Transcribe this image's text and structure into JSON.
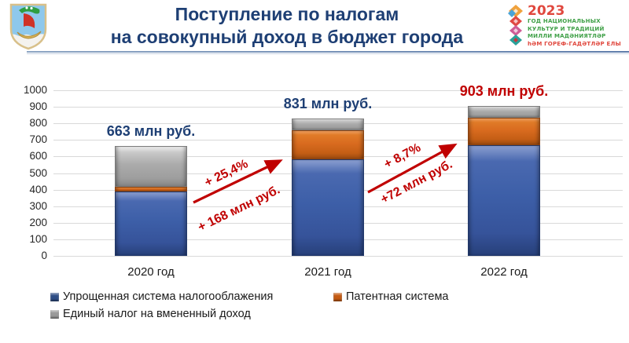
{
  "header": {
    "title_line1": "Поступление по налогам",
    "title_line2": "на совокупный доход в бюджет города",
    "year_logo": {
      "year": "2023",
      "lines": [
        "ГОД НАЦИОНАЛЬНЫХ",
        "КУЛЬТУР И ТРАДИЦИЙ",
        "МИЛЛИ МАДӘНИЯТЛӘР",
        "һӘМ ГОРЕФ-ГАДӘТЛӘР ЕЛЫ"
      ]
    }
  },
  "chart_data": {
    "type": "bar",
    "stacked": true,
    "title": "Поступление по налогам на совокупный доход в бюджет города",
    "unit": "млн руб.",
    "categories": [
      "2020 год",
      "2021 год",
      "2022 год"
    ],
    "series": [
      {
        "name": "Упрощенная система налогооблажения",
        "color": "#3d5fa8",
        "values": [
          390,
          583,
          670
        ]
      },
      {
        "name": "Патентная система",
        "color": "#d96b1f",
        "values": [
          28,
          174,
          165
        ]
      },
      {
        "name": "Единый налог на вмененный доход",
        "color": "#a9a9a9",
        "values": [
          245,
          74,
          68
        ]
      }
    ],
    "totals": [
      663,
      831,
      903
    ],
    "total_labels": [
      "663 млн руб.",
      "831 млн руб.",
      "903 млн руб."
    ],
    "total_label_colors": [
      "#1e3f74",
      "#1e3f74",
      "#c00000"
    ],
    "ylim": [
      0,
      1000
    ],
    "yticks": [
      0,
      100,
      200,
      300,
      400,
      500,
      600,
      700,
      800,
      900,
      1000
    ],
    "grid": true,
    "legend_position": "bottom",
    "annotations": [
      {
        "from": "2020 год",
        "to": "2021 год",
        "pct": "+ 25,4%",
        "abs": "+ 168 млн руб."
      },
      {
        "from": "2021 год",
        "to": "2022 год",
        "pct": "+ 8,7%",
        "abs": "+72 млн руб."
      }
    ]
  },
  "colors": {
    "title": "#1e3f74",
    "annotation": "#c00000",
    "grid": "#d9d9d9",
    "logo_green": "#3fa047",
    "logo_red": "#e0483e"
  }
}
